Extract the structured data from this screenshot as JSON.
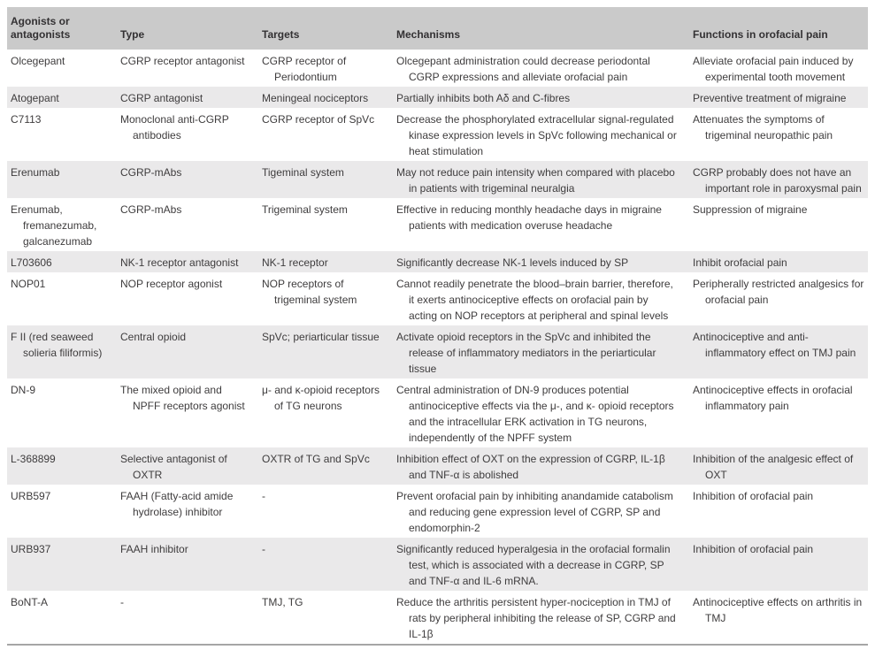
{
  "colors": {
    "header_bg": "#cacaca",
    "stripe_bg": "#eae9ea",
    "text": "#3e3c3d",
    "bottom_rule": "#a6a6a6"
  },
  "table": {
    "columns": [
      "Agonists or antagonists",
      "Type",
      "Targets",
      "Mechanisms",
      "Functions in orofacial pain"
    ],
    "rows": [
      {
        "name": "Olcegepant",
        "type": "CGRP receptor antagonist",
        "targets": "CGRP receptor of Periodontium",
        "mechanisms": "Olcegepant administration could decrease periodontal CGRP expressions and alleviate orofacial pain",
        "functions": "Alleviate orofacial pain induced by experimental tooth movement"
      },
      {
        "name": "Atogepant",
        "type": "CGRP antagonist",
        "targets": "Meningeal nociceptors",
        "mechanisms": "Partially inhibits both Aδ and C-fibres",
        "functions": "Preventive treatment of migraine"
      },
      {
        "name": "C7113",
        "type": "Monoclonal anti-CGRP antibodies",
        "targets": "CGRP receptor of SpVc",
        "mechanisms": "Decrease the phosphorylated extracellular signal-regulated kinase expression levels in SpVc following mechanical or heat stimulation",
        "functions": "Attenuates the symptoms of trigeminal neuropathic pain"
      },
      {
        "name": "Erenumab",
        "type": "CGRP-mAbs",
        "targets": "Tigeminal system",
        "mechanisms": "May not reduce pain intensity when compared with placebo in patients with trigeminal neuralgia",
        "functions": "CGRP probably does not have an important role in paroxysmal pain"
      },
      {
        "name": "Erenumab, fremanezumab, galcanezumab",
        "type": "CGRP-mAbs",
        "targets": "Trigeminal system",
        "mechanisms": "Effective in reducing monthly headache days in migraine patients with medication overuse headache",
        "functions": "Suppression of migraine"
      },
      {
        "name": "L703606",
        "type": "NK-1 receptor antagonist",
        "targets": "NK-1 receptor",
        "mechanisms": "Significantly decrease NK-1 levels induced by SP",
        "functions": "Inhibit orofacial pain"
      },
      {
        "name": "NOP01",
        "type": "NOP receptor agonist",
        "targets": "NOP receptors of trigeminal system",
        "mechanisms": "Cannot readily penetrate the blood–brain barrier, therefore, it exerts antinociceptive effects on orofacial pain by acting on NOP receptors at peripheral and spinal levels",
        "functions": "Peripherally restricted analgesics for orofacial pain"
      },
      {
        "name": "F II (red seaweed solieria filiformis)",
        "type": "Central opioid",
        "targets": "SpVc; periarticular tissue",
        "mechanisms": "Activate opioid receptors in the SpVc and inhibited the release of inflammatory mediators in the periarticular tissue",
        "functions": "Antinociceptive and anti-inflammatory effect on TMJ pain"
      },
      {
        "name": "DN-9",
        "type": "The mixed opioid and NPFF receptors agonist",
        "targets": "μ- and κ-opioid receptors of TG neurons",
        "mechanisms": "Central administration of DN-9 produces potential antinociceptive effects via the μ-, and κ- opioid receptors and the intracellular ERK activation in TG neurons, independently of the NPFF system",
        "functions": "Antinociceptive effects in orofacial inflammatory pain"
      },
      {
        "name": "L-368899",
        "type": "Selective antagonist of OXTR",
        "targets": "OXTR of TG and SpVc",
        "mechanisms": "Inhibition effect of OXT on the expression of CGRP, IL-1β and TNF-α is abolished",
        "functions": "Inhibition of the analgesic effect of OXT"
      },
      {
        "name": "URB597",
        "type": "FAAH (Fatty-acid amide hydrolase) inhibitor",
        "targets": "-",
        "mechanisms": "Prevent orofacial pain by inhibiting anandamide catabolism and reducing gene expression level of CGRP, SP and endomorphin-2",
        "functions": "Inhibition of orofacial pain"
      },
      {
        "name": "URB937",
        "type": "FAAH inhibitor",
        "targets": "-",
        "mechanisms": "Significantly reduced hyperalgesia in the orofacial formalin test, which is associated with a decrease in CGRP, SP and TNF-α and IL-6 mRNA.",
        "functions": "Inhibition of orofacial pain"
      },
      {
        "name": "BoNT-A",
        "type": "-",
        "targets": "TMJ, TG",
        "mechanisms": "Reduce the arthritis persistent hyper-nociception in TMJ of rats by peripheral inhibiting the release of SP, CGRP and IL-1β",
        "functions": "Antinociceptive effects on arthritis in TMJ"
      }
    ]
  }
}
